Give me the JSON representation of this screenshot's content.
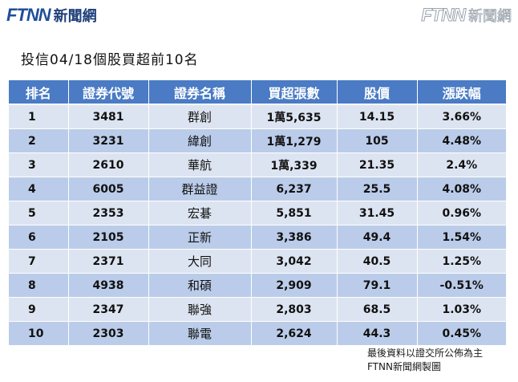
{
  "logo": {
    "mark": "FTNN",
    "text": "新聞網"
  },
  "watermark": {
    "mark": "FTNN",
    "text": "新聞網"
  },
  "title": "投信04/18個股買超前10名",
  "table": {
    "headers": [
      "排名",
      "證券代號",
      "證券名稱",
      "買超張數",
      "股價",
      "漲跌幅"
    ],
    "rows": [
      [
        "1",
        "3481",
        "群創",
        "1萬5,635",
        "14.15",
        "3.66%"
      ],
      [
        "2",
        "3231",
        "緯創",
        "1萬1,279",
        "105",
        "4.48%"
      ],
      [
        "3",
        "2610",
        "華航",
        "1萬,339",
        "21.35",
        "2.4%"
      ],
      [
        "4",
        "6005",
        "群益證",
        "6,237",
        "25.5",
        "4.08%"
      ],
      [
        "5",
        "2353",
        "宏碁",
        "5,851",
        "31.45",
        "0.96%"
      ],
      [
        "6",
        "2105",
        "正新",
        "3,386",
        "49.4",
        "1.54%"
      ],
      [
        "7",
        "2371",
        "大同",
        "3,042",
        "40.5",
        "1.25%"
      ],
      [
        "8",
        "4938",
        "和碩",
        "2,909",
        "79.1",
        "-0.51%"
      ],
      [
        "9",
        "2347",
        "聯強",
        "2,803",
        "68.5",
        "1.03%"
      ],
      [
        "10",
        "2303",
        "聯電",
        "2,624",
        "44.3",
        "0.45%"
      ]
    ]
  },
  "footer": {
    "line1": "最後資料以證交所公佈為主",
    "line2": "FTNN新聞網製圖"
  },
  "colors": {
    "header_bg": "#4a7bc4",
    "row_light": "#dde4f1",
    "row_dark": "#bacce9",
    "brand": "#1f4e9a"
  }
}
